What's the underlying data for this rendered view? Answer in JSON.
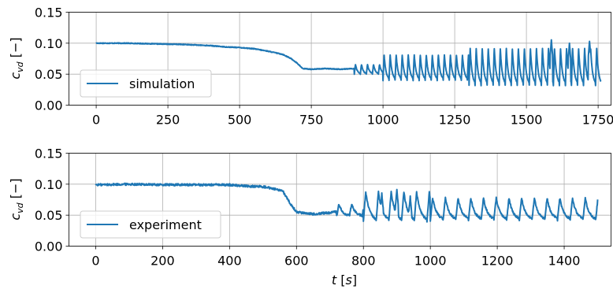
{
  "chart_data": [
    {
      "type": "line",
      "xlabel": "",
      "ylabel": "c_vd [−]",
      "xlim": [
        -95,
        1795
      ],
      "ylim": [
        0,
        0.15
      ],
      "xticks": [
        "0",
        "250",
        "500",
        "750",
        "1000",
        "1250",
        "1500",
        "1750"
      ],
      "xtick_values": [
        0,
        250,
        500,
        750,
        1000,
        1250,
        1500,
        1750
      ],
      "yticks": [
        "0.00",
        "0.05",
        "0.10",
        "0.15"
      ],
      "ytick_values": [
        0,
        0.05,
        0.1,
        0.15
      ],
      "grid": true,
      "legend_position": "lower-left",
      "color": "#1f77b4",
      "series": [
        {
          "name": "simulation",
          "x": [
            0,
            100,
            200,
            300,
            400,
            450,
            500,
            550,
            600,
            650,
            680,
            700,
            720,
            750,
            800,
            850,
            900,
            950,
            1000,
            1040,
            1080,
            1120,
            1160,
            1200,
            1240,
            1280,
            1320,
            1360,
            1400,
            1440,
            1480,
            1520,
            1560,
            1590,
            1620,
            1650,
            1680,
            1720,
            1760
          ],
          "y": [
            0.1,
            0.1,
            0.099,
            0.098,
            0.096,
            0.094,
            0.093,
            0.091,
            0.087,
            0.082,
            0.075,
            0.068,
            0.059,
            0.058,
            0.059,
            0.058,
            0.059,
            0.062,
            0.063,
            0.06,
            0.062,
            0.064,
            0.062,
            0.065,
            0.063,
            0.066,
            0.064,
            0.067,
            0.065,
            0.068,
            0.066,
            0.069,
            0.068,
            0.072,
            0.068,
            0.07,
            0.069,
            0.068,
            0.035
          ],
          "oscillation": [
            {
              "from": 900,
              "to": 1000,
              "min": 0.05,
              "max": 0.066
            },
            {
              "from": 1000,
              "to": 1300,
              "min": 0.04,
              "max": 0.082
            },
            {
              "from": 1300,
              "to": 1760,
              "min": 0.032,
              "max": 0.093
            }
          ],
          "peaks": [
            [
              1587,
              0.105
            ],
            [
              1650,
              0.1
            ],
            [
              1720,
              0.103
            ]
          ]
        }
      ]
    },
    {
      "type": "line",
      "xlabel": "t [s]",
      "ylabel": "c_vd [−]",
      "xlim": [
        -80,
        1540
      ],
      "ylim": [
        0,
        0.15
      ],
      "xticks": [
        "0",
        "200",
        "400",
        "600",
        "800",
        "1000",
        "1200",
        "1400"
      ],
      "xtick_values": [
        0,
        200,
        400,
        600,
        800,
        1000,
        1200,
        1400
      ],
      "yticks": [
        "0.00",
        "0.05",
        "0.10",
        "0.15"
      ],
      "ytick_values": [
        0,
        0.05,
        0.1,
        0.15
      ],
      "grid": true,
      "legend_position": "lower-left",
      "color": "#1f77b4",
      "series": [
        {
          "name": "experiment",
          "x": [
            0,
            100,
            200,
            300,
            400,
            450,
            500,
            530,
            560,
            580,
            600,
            650,
            700,
            750,
            800,
            850,
            900,
            950,
            1000,
            1050,
            1100,
            1150,
            1200,
            1250,
            1300,
            1350,
            1400,
            1450,
            1500
          ],
          "y": [
            0.099,
            0.1,
            0.099,
            0.099,
            0.099,
            0.097,
            0.096,
            0.093,
            0.088,
            0.07,
            0.055,
            0.052,
            0.054,
            0.06,
            0.062,
            0.065,
            0.063,
            0.06,
            0.064,
            0.062,
            0.06,
            0.063,
            0.061,
            0.062,
            0.06,
            0.062,
            0.06,
            0.061,
            0.054
          ],
          "oscillation": [
            {
              "from": 720,
              "to": 800,
              "min": 0.048,
              "max": 0.068
            },
            {
              "from": 800,
              "to": 1000,
              "min": 0.04,
              "max": 0.088
            },
            {
              "from": 1000,
              "to": 1500,
              "min": 0.042,
              "max": 0.078
            }
          ],
          "peaks": [
            [
              855,
              0.085
            ],
            [
              900,
              0.09
            ],
            [
              940,
              0.08
            ]
          ]
        }
      ]
    }
  ]
}
